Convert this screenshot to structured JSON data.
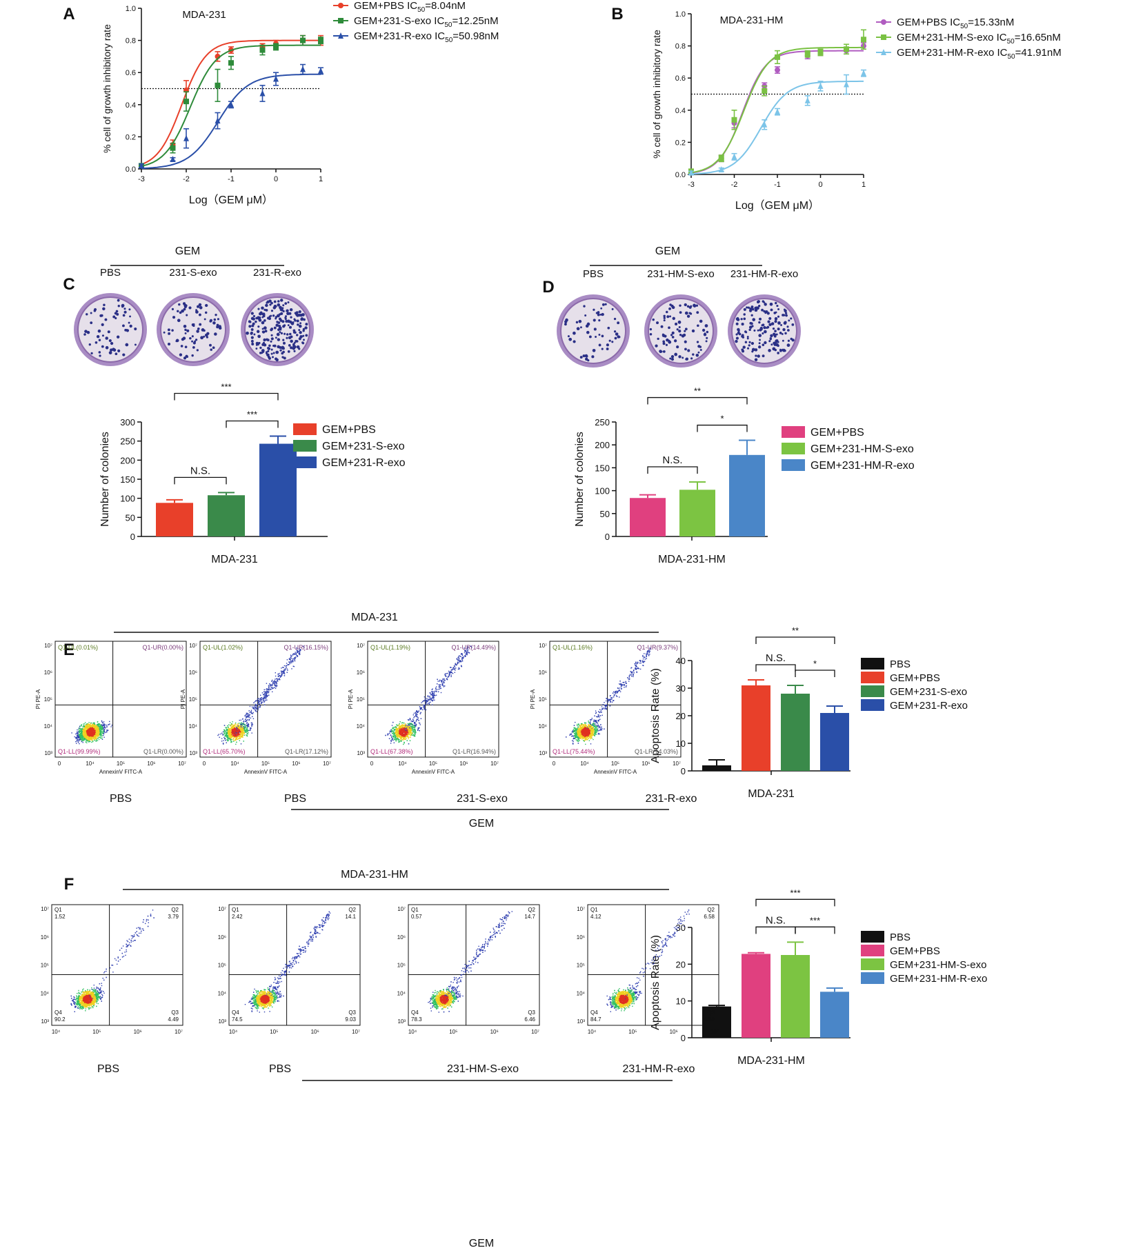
{
  "colors": {
    "red": "#e8402a",
    "dkgreen": "#3a8a4a",
    "blue": "#2a4fa8",
    "pink": "#e0407f",
    "ltgreen": "#7cc442",
    "ltblue": "#4a86c8",
    "black": "#111111",
    "purple": "#b05cc0",
    "green2": "#7ac143",
    "cyan": "#7cc4e8"
  },
  "panel_letters": [
    "A",
    "B",
    "C",
    "D",
    "E",
    "F"
  ],
  "chart_data": [
    {
      "id": "A",
      "type": "line",
      "title": "MDA-231",
      "xlabel": "Log（GEM μM）",
      "ylabel": "% cell of growth inhibitory rate",
      "xlim": [
        -3,
        1
      ],
      "ylim": [
        0,
        1
      ],
      "xticks": [
        "-3",
        "-2",
        "-1",
        "0",
        "1"
      ],
      "yticks": [
        "0.0",
        "0.2",
        "0.4",
        "0.6",
        "0.8",
        "1.0"
      ],
      "reference_line": 0.5,
      "series": [
        {
          "name": "GEM+PBS",
          "ic50_label": "IC",
          "ic50_sub": "50",
          "ic50_value": "=8.04nM",
          "color": "#e8402a",
          "marker": "circle",
          "x": [
            -3,
            -2.3,
            -2.0,
            -1.3,
            -1.0,
            -0.3,
            0,
            0.6,
            1.0
          ],
          "y": [
            0.02,
            0.15,
            0.49,
            0.7,
            0.74,
            0.76,
            0.78,
            0.8,
            0.8
          ],
          "err": [
            0.01,
            0.03,
            0.06,
            0.03,
            0.02,
            0.02,
            0.02,
            0.03,
            0.03
          ],
          "fit": [
            0.0,
            0.8,
            -2.1,
            1.6
          ]
        },
        {
          "name": "GEM+231-S-exo",
          "ic50_label": "IC",
          "ic50_sub": "50",
          "ic50_value": "=12.25nM",
          "color": "#2e8b3a",
          "marker": "square",
          "x": [
            -3,
            -2.3,
            -2.0,
            -1.3,
            -1.0,
            -0.3,
            0,
            0.6,
            1.0
          ],
          "y": [
            0.02,
            0.13,
            0.42,
            0.52,
            0.66,
            0.74,
            0.76,
            0.8,
            0.8
          ],
          "err": [
            0.01,
            0.03,
            0.06,
            0.1,
            0.04,
            0.03,
            0.02,
            0.03,
            0.02
          ],
          "fit": [
            0.0,
            0.77,
            -1.91,
            1.5
          ]
        },
        {
          "name": "GEM+231-R-exo",
          "ic50_label": "IC",
          "ic50_sub": "50",
          "ic50_value": "=50.98nM",
          "color": "#2a4fa8",
          "marker": "triangle",
          "x": [
            -3,
            -2.3,
            -2.0,
            -1.3,
            -1.0,
            -0.3,
            0,
            0.6,
            1.0
          ],
          "y": [
            0.02,
            0.06,
            0.19,
            0.3,
            0.4,
            0.47,
            0.56,
            0.62,
            0.61
          ],
          "err": [
            0.01,
            0.01,
            0.06,
            0.05,
            0.02,
            0.05,
            0.04,
            0.03,
            0.02
          ],
          "fit": [
            0.0,
            0.59,
            -1.29,
            1.3
          ]
        }
      ]
    },
    {
      "id": "B",
      "type": "line",
      "title": "MDA-231-HM",
      "xlabel": "Log（GEM μM）",
      "ylabel": "% cell of growth inhibitory rate",
      "xlim": [
        -3,
        1
      ],
      "ylim": [
        0,
        1
      ],
      "xticks": [
        "-3",
        "-2",
        "-1",
        "0",
        "1"
      ],
      "yticks": [
        "0.0",
        "0.2",
        "0.4",
        "0.6",
        "0.8",
        "1.0"
      ],
      "reference_line": 0.5,
      "series": [
        {
          "name": "GEM+PBS",
          "ic50_label": "IC",
          "ic50_sub": "50",
          "ic50_value": "=15.33nM",
          "color": "#b05cc0",
          "marker": "circle",
          "x": [
            -3,
            -2.3,
            -2.0,
            -1.3,
            -1.0,
            -0.3,
            0,
            0.6,
            1.0
          ],
          "y": [
            0.02,
            0.1,
            0.32,
            0.55,
            0.65,
            0.74,
            0.76,
            0.77,
            0.8
          ],
          "err": [
            0.01,
            0.02,
            0.03,
            0.02,
            0.02,
            0.02,
            0.02,
            0.02,
            0.02
          ],
          "fit": [
            0.0,
            0.77,
            -1.81,
            1.6
          ]
        },
        {
          "name": "GEM+231-HM-S-exo",
          "ic50_label": "IC",
          "ic50_sub": "50",
          "ic50_value": "=16.65nM",
          "color": "#7ac143",
          "marker": "square",
          "x": [
            -3,
            -2.3,
            -2.0,
            -1.3,
            -1.0,
            -0.3,
            0,
            0.6,
            1.0
          ],
          "y": [
            0.02,
            0.1,
            0.34,
            0.52,
            0.73,
            0.75,
            0.76,
            0.78,
            0.84
          ],
          "err": [
            0.01,
            0.02,
            0.06,
            0.03,
            0.04,
            0.02,
            0.02,
            0.03,
            0.06
          ],
          "fit": [
            0.0,
            0.79,
            -1.78,
            1.5
          ]
        },
        {
          "name": "GEM+231-HM-R-exo",
          "ic50_label": "IC",
          "ic50_sub": "50",
          "ic50_value": "=41.91nM",
          "color": "#7cc4e8",
          "marker": "triangle",
          "x": [
            -3,
            -2.3,
            -2.0,
            -1.3,
            -1.0,
            -0.3,
            0,
            0.6,
            1.0
          ],
          "y": [
            0.01,
            0.03,
            0.11,
            0.31,
            0.39,
            0.46,
            0.55,
            0.56,
            0.63
          ],
          "err": [
            0.01,
            0.01,
            0.02,
            0.03,
            0.02,
            0.03,
            0.03,
            0.06,
            0.02
          ],
          "fit": [
            0.0,
            0.58,
            -1.38,
            1.4
          ]
        }
      ]
    },
    {
      "id": "C",
      "type": "bar",
      "xlabel": "MDA-231",
      "ylabel": "Number of colonies",
      "ylim": [
        0,
        300
      ],
      "yticks": [
        "0",
        "50",
        "100",
        "150",
        "200",
        "250",
        "300"
      ],
      "categories": [
        "GEM+PBS",
        "GEM+231-S-exo",
        "GEM+231-R-exo"
      ],
      "values": [
        88,
        108,
        243
      ],
      "errors": [
        8,
        7,
        20
      ],
      "colors": [
        "#e8402a",
        "#3a8a4a",
        "#2a4fa8"
      ],
      "significance": [
        {
          "from": 0,
          "to": 1,
          "label": "N.S."
        },
        {
          "from": 1,
          "to": 2,
          "label": "***"
        },
        {
          "from": 0,
          "to": 2,
          "label": "***"
        }
      ]
    },
    {
      "id": "D",
      "type": "bar",
      "xlabel": "MDA-231-HM",
      "ylabel": "Number of colonies",
      "ylim": [
        0,
        250
      ],
      "yticks": [
        "0",
        "50",
        "100",
        "150",
        "200",
        "250"
      ],
      "categories": [
        "GEM+PBS",
        "GEM+231-HM-S-exo",
        "GEM+231-HM-R-exo"
      ],
      "values": [
        84,
        102,
        178
      ],
      "errors": [
        7,
        17,
        32
      ],
      "colors": [
        "#e0407f",
        "#7cc442",
        "#4a86c8"
      ],
      "significance": [
        {
          "from": 0,
          "to": 1,
          "label": "N.S."
        },
        {
          "from": 1,
          "to": 2,
          "label": "*"
        },
        {
          "from": 0,
          "to": 2,
          "label": "**"
        }
      ]
    },
    {
      "id": "E-bar",
      "type": "bar",
      "xlabel": "MDA-231",
      "ylabel": "Apoptosis Rate (%)",
      "ylim": [
        0,
        40
      ],
      "yticks": [
        "0",
        "10",
        "20",
        "30",
        "40"
      ],
      "categories": [
        "PBS",
        "GEM+PBS",
        "GEM+231-S-exo",
        "GEM+231-R-exo"
      ],
      "values": [
        2,
        31,
        28,
        21
      ],
      "errors": [
        2,
        2,
        3,
        2.5
      ],
      "colors": [
        "#111111",
        "#e8402a",
        "#3a8a4a",
        "#2a4fa8"
      ],
      "significance": [
        {
          "from": 1,
          "to": 2,
          "label": "N.S."
        },
        {
          "from": 2,
          "to": 3,
          "label": "*"
        },
        {
          "from": 1,
          "to": 3,
          "label": "**"
        }
      ]
    },
    {
      "id": "F-bar",
      "type": "bar",
      "xlabel": "MDA-231-HM",
      "ylabel": "Apoptosis Rate (%)",
      "ylim": [
        0,
        30
      ],
      "yticks": [
        "0",
        "10",
        "20",
        "30"
      ],
      "categories": [
        "PBS",
        "GEM+PBS",
        "GEM+231-HM-S-exo",
        "GEM+231-HM-R-exo"
      ],
      "values": [
        8.5,
        22.8,
        22.5,
        12.5
      ],
      "errors": [
        0.3,
        0.3,
        3.5,
        1
      ],
      "colors": [
        "#111111",
        "#e0407f",
        "#7cc442",
        "#4a86c8"
      ],
      "significance": [
        {
          "from": 1,
          "to": 2,
          "label": "N.S."
        },
        {
          "from": 2,
          "to": 3,
          "label": "***"
        },
        {
          "from": 1,
          "to": 3,
          "label": "***"
        }
      ]
    }
  ],
  "dishes": {
    "C": {
      "header": "GEM",
      "labels": [
        "PBS",
        "231-S-exo",
        "231-R-exo"
      ],
      "colony_counts": [
        60,
        80,
        220
      ]
    },
    "D": {
      "header": "GEM",
      "labels": [
        "PBS",
        "231-HM-S-exo",
        "231-HM-R-exo"
      ],
      "colony_counts": [
        55,
        90,
        160
      ]
    }
  },
  "flow": {
    "E": {
      "header": "MDA-231",
      "group": "GEM",
      "xlabel": "AnnexinV FITC-A",
      "ylabel": "PI PE-A",
      "xticks": [
        "0",
        "10⁴",
        "10⁵",
        "10⁶",
        "10⁷"
      ],
      "yticks": [
        "10³",
        "10⁴",
        "10⁵",
        "10⁶",
        "10⁷"
      ],
      "plots": [
        {
          "label": "PBS",
          "UL": "Q1-UL(0.01%)",
          "UR": "Q1-UR(0.00%)",
          "LL": "Q1-LL(99.99%)",
          "LR": "Q1-LR(0.00%)",
          "apoptotic_fraction": 0.0
        },
        {
          "label": "PBS",
          "UL": "Q1-UL(1.02%)",
          "UR": "Q1-UR(16.15%)",
          "LL": "Q1-LL(65.70%)",
          "LR": "Q1-LR(17.12%)",
          "apoptotic_fraction": 0.33
        },
        {
          "label": "231-S-exo",
          "UL": "Q1-UL(1.19%)",
          "UR": "Q1-UR(14.49%)",
          "LL": "Q1-LL(67.38%)",
          "LR": "Q1-LR(16.94%)",
          "apoptotic_fraction": 0.31
        },
        {
          "label": "231-R-exo",
          "UL": "Q1-UL(1.16%)",
          "UR": "Q1-UR(9.37%)",
          "LL": "Q1-LL(75.44%)",
          "LR": "Q1-LR(14.03%)",
          "apoptotic_fraction": 0.23
        }
      ]
    },
    "F": {
      "header": "MDA-231-HM",
      "group": "GEM",
      "xticks": [
        "10⁴",
        "10⁵",
        "10⁶",
        "10⁷"
      ],
      "yticks": [
        "10³",
        "10⁴",
        "10⁵",
        "10⁶",
        "10⁷"
      ],
      "plots": [
        {
          "label": "PBS",
          "q1": "Q1",
          "q1v": "1.52",
          "q2": "Q2",
          "q2v": "3.79",
          "q3": "Q3",
          "q3v": "4.49",
          "q4": "Q4",
          "q4v": "90.2",
          "apoptotic_fraction": 0.08
        },
        {
          "label": "PBS",
          "q1": "Q1",
          "q1v": "2.42",
          "q2": "Q2",
          "q2v": "14.1",
          "q3": "Q3",
          "q3v": "9.03",
          "q4": "Q4",
          "q4v": "74.5",
          "apoptotic_fraction": 0.23
        },
        {
          "label": "231-HM-S-exo",
          "q1": "Q1",
          "q1v": "0.57",
          "q2": "Q2",
          "q2v": "14.7",
          "q3": "Q3",
          "q3v": "6.46",
          "q4": "Q4",
          "q4v": "78.3",
          "apoptotic_fraction": 0.21
        },
        {
          "label": "231-HM-R-exo",
          "q1": "Q1",
          "q1v": "4.12",
          "q2": "Q2",
          "q2v": "6.58",
          "q3": "Q3",
          "q3v": "4.59",
          "q4": "Q4",
          "q4v": "84.7",
          "apoptotic_fraction": 0.11
        }
      ]
    }
  }
}
